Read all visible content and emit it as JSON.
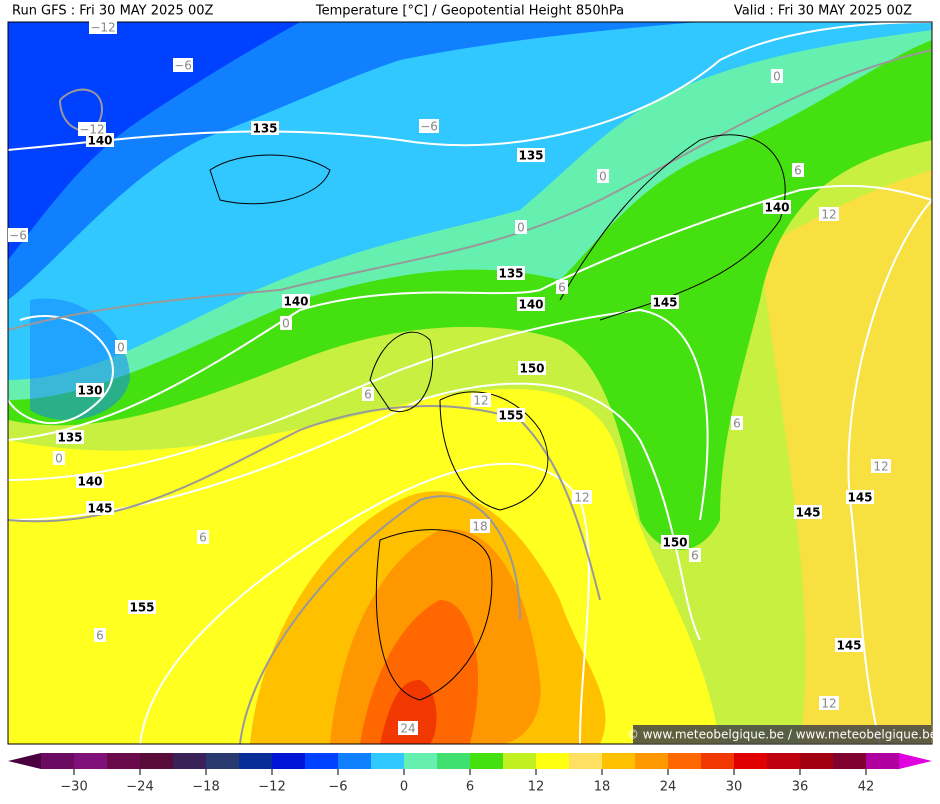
{
  "header": {
    "run": "Run GFS : Fri 30 MAY 2025 00Z",
    "title": "Temperature [°C] / Geopotential Height 850hPa",
    "valid": "Valid : Fri 30 MAY 2025 00Z"
  },
  "map": {
    "labels": [
      "140",
      "135",
      "135",
      "140",
      "135",
      "140",
      "140",
      "145",
      "130",
      "150",
      "155",
      "135",
      "140",
      "145",
      "145",
      "145",
      "150",
      "155",
      "145",
      "−12",
      "−6",
      "−12",
      "−6",
      "0",
      "6",
      "0",
      "12",
      "0",
      "−6",
      "6",
      "0",
      "0",
      "6",
      "12",
      "6",
      "0",
      "12",
      "12",
      "18",
      "6",
      "6",
      "6",
      "12",
      "24"
    ],
    "watermark": "© www.meteobelgique.be / www.meteobelgique.be"
  },
  "colorbar": {
    "range": [
      -33,
      45
    ],
    "colors": [
      "#6a0a60",
      "#80107a",
      "#6a0a4a",
      "#580a38",
      "#3a2258",
      "#283a70",
      "#082c98",
      "#0014d8",
      "#0040ff",
      "#1080ff",
      "#30c8ff",
      "#66f0b0",
      "#40e070",
      "#44e010",
      "#c0f020",
      "#ffff10",
      "#ffe060",
      "#ffc000",
      "#ff9800",
      "#ff6800",
      "#f03800",
      "#e00000",
      "#c00010",
      "#a00010",
      "#800030",
      "#b000a0"
    ],
    "under_color": "#4a0040",
    "over_color": "#e000e0",
    "ticks": [
      {
        "value": -30,
        "label": "−30"
      },
      {
        "value": -24,
        "label": "−24"
      },
      {
        "value": -18,
        "label": "−18"
      },
      {
        "value": -12,
        "label": "−12"
      },
      {
        "value": -6,
        "label": "−6"
      },
      0,
      6,
      12,
      18,
      24,
      30,
      36,
      42
    ]
  }
}
